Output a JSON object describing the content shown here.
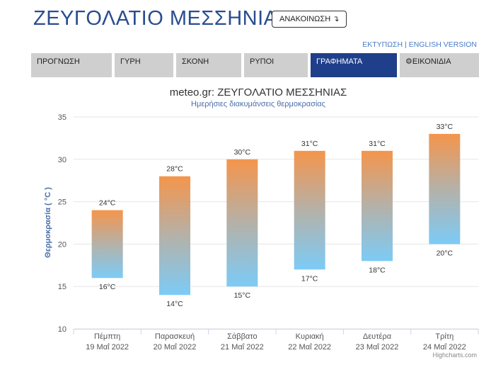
{
  "header": {
    "title": "ΖΕΥΓΟΛΑΤΙΟ ΜΕΣΣΗΝΙΑΣ",
    "announce_label": "ΑΝΑΚΟΙΝΩΣΗ ↴",
    "print_label": "ΕΚΤΥΠΩΣΗ",
    "separator": "|",
    "english_label": "ENGLISH VERSION"
  },
  "nav": {
    "tabs": [
      {
        "label": "ΠΡΟΓΝΩΣΗ"
      },
      {
        "label": "ΓΥΡΗ"
      },
      {
        "label": "ΣΚΟΝΗ"
      },
      {
        "label": "ΡΥΠΟΙ"
      },
      {
        "label": "ΓΡΑΦΗΜΑΤΑ"
      },
      {
        "label": "ΕΙΚΟΝΙΔΙΑ"
      }
    ]
  },
  "chart_data": {
    "type": "bar",
    "title": "meteo.gr: ΖΕΥΓΟΛΑΤΙΟ ΜΕΣΣΗΝΙΑΣ",
    "subtitle": "Ημερήσιες διακυμάνσεις θερμοκρασίας",
    "ylabel": "Θερμοκρασία ( °C )",
    "ylim": [
      10,
      35
    ],
    "yticks": [
      "10",
      "15",
      "20",
      "25",
      "30",
      "35"
    ],
    "categories": [
      {
        "day": "Πέμπτη",
        "date": "19 Μαΐ 2022"
      },
      {
        "day": "Παρασκευή",
        "date": "20 Μαΐ 2022"
      },
      {
        "day": "Σάββατο",
        "date": "21 Μαΐ 2022"
      },
      {
        "day": "Κυριακή",
        "date": "22 Μαΐ 2022"
      },
      {
        "day": "Δευτέρα",
        "date": "23 Μαΐ 2022"
      },
      {
        "day": "Τρίτη",
        "date": "24 Μαΐ 2022"
      }
    ],
    "min": [
      16,
      14,
      15,
      17,
      18,
      20
    ],
    "max": [
      24,
      28,
      30,
      31,
      31,
      33
    ],
    "min_labels": [
      "16°C",
      "14°C",
      "15°C",
      "17°C",
      "18°C",
      "20°C"
    ],
    "max_labels": [
      "24°C",
      "28°C",
      "30°C",
      "31°C",
      "31°C",
      "33°C"
    ],
    "grid": true,
    "colors": {
      "top": "#f4954c",
      "bottom": "#7ccbf6",
      "axis_title": "#4a6fa8"
    }
  },
  "credit": "Highcharts.com"
}
